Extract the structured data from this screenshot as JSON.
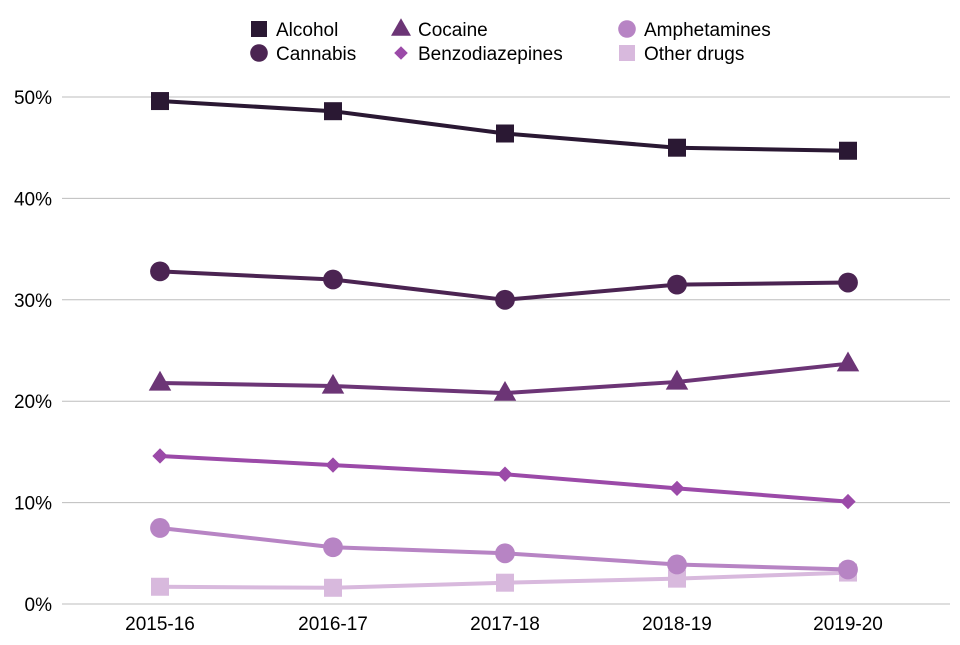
{
  "chart_data": {
    "type": "line",
    "title": "",
    "xlabel": "",
    "ylabel": "",
    "categories": [
      "2015-16",
      "2016-17",
      "2017-18",
      "2018-19",
      "2019-20"
    ],
    "ylim": [
      0,
      50
    ],
    "yticks": [
      0,
      10,
      20,
      30,
      40,
      50
    ],
    "ytick_labels": [
      "0%",
      "10%",
      "20%",
      "30%",
      "40%",
      "50%"
    ],
    "grid": "horizontal",
    "legend_placement": "top",
    "series": [
      {
        "name": "Alcohol",
        "marker": "square",
        "color": "#2a1833",
        "values": [
          49.6,
          48.6,
          46.4,
          45.0,
          44.7
        ]
      },
      {
        "name": "Cannabis",
        "marker": "circle",
        "color": "#4b2452",
        "values": [
          32.8,
          32.0,
          30.0,
          31.5,
          31.7
        ]
      },
      {
        "name": "Cocaine",
        "marker": "triangle",
        "color": "#6c3576",
        "values": [
          21.8,
          21.5,
          20.8,
          21.9,
          23.7
        ]
      },
      {
        "name": "Benzodiazepines",
        "marker": "diamond",
        "color": "#9b4aa8",
        "values": [
          14.6,
          13.7,
          12.8,
          11.4,
          10.1
        ]
      },
      {
        "name": "Amphetamines",
        "marker": "circle",
        "color": "#b784c4",
        "values": [
          7.5,
          5.6,
          5.0,
          3.9,
          3.4
        ]
      },
      {
        "name": "Other drugs",
        "marker": "square",
        "color": "#d8b9dd",
        "values": [
          1.7,
          1.6,
          2.1,
          2.5,
          3.1
        ]
      }
    ]
  }
}
